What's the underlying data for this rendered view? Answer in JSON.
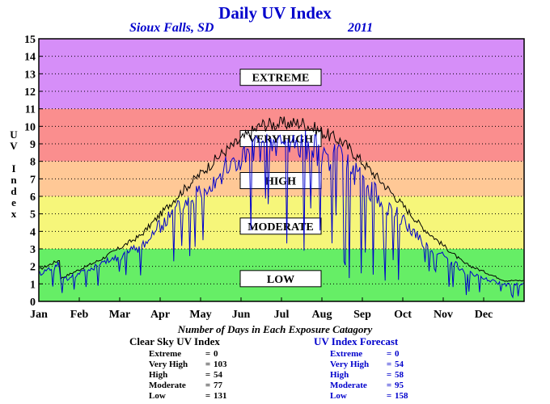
{
  "title": "Daily UV Index",
  "subtitle_location": "Sioux Falls, SD",
  "subtitle_year": "2011",
  "chart_data": {
    "type": "line",
    "title": "Daily UV Index",
    "ylabel": "UV Index",
    "xlabel": "",
    "ylim": [
      0,
      15
    ],
    "yticks": [
      0,
      1,
      2,
      3,
      4,
      5,
      6,
      7,
      8,
      9,
      10,
      11,
      12,
      13,
      14,
      15
    ],
    "x_categories": [
      "Jan",
      "Feb",
      "Mar",
      "Apr",
      "May",
      "Jun",
      "Jul",
      "Aug",
      "Sep",
      "Oct",
      "Nov",
      "Dec"
    ],
    "grid": "dotted horizontal",
    "bands": [
      {
        "label": "LOW",
        "from": 0,
        "to": 3,
        "color": "#66ee66"
      },
      {
        "label": "MODERATE",
        "from": 3,
        "to": 6,
        "color": "#f6f67a"
      },
      {
        "label": "HIGH",
        "from": 6,
        "to": 8,
        "color": "#ffc896"
      },
      {
        "label": "VERY HIGH",
        "from": 8,
        "to": 11,
        "color": "#fa8e8e"
      },
      {
        "label": "EXTREME",
        "from": 11,
        "to": 15,
        "color": "#d68ef8"
      }
    ],
    "series": [
      {
        "color": "#000000",
        "monthly_values": [
          1.3,
          2.4,
          3.8,
          6.3,
          8.5,
          10.2,
          10.3,
          9.2,
          6.8,
          4.2,
          2.2,
          1.2
        ]
      },
      {
        "color": "#0000cc",
        "monthly_values": [
          1.2,
          2.2,
          3.3,
          5.8,
          7.8,
          9.4,
          9.5,
          8.4,
          6.0,
          3.6,
          1.8,
          1.0
        ]
      }
    ]
  },
  "summary": {
    "heading": "Number of Days in Each Exposure Catagory",
    "clear_sky": {
      "title": "Clear Sky UV Index",
      "rows": [
        {
          "name": "Extreme",
          "value": "0"
        },
        {
          "name": "Very High",
          "value": "103"
        },
        {
          "name": "High",
          "value": "54"
        },
        {
          "name": "Moderate",
          "value": "77"
        },
        {
          "name": "Low",
          "value": "131"
        }
      ]
    },
    "forecast": {
      "title": "UV Index Forecast",
      "rows": [
        {
          "name": "Extreme",
          "value": "0"
        },
        {
          "name": "Very High",
          "value": "54"
        },
        {
          "name": "High",
          "value": "58"
        },
        {
          "name": "Moderate",
          "value": "95"
        },
        {
          "name": "Low",
          "value": "158"
        }
      ]
    }
  }
}
